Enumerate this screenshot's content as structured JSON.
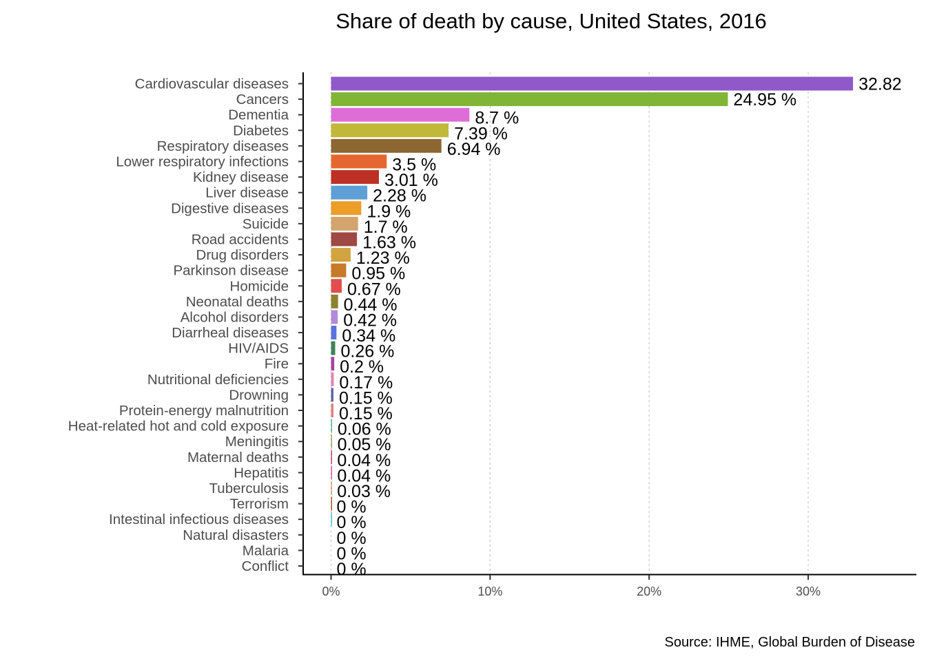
{
  "chart_data": {
    "type": "bar",
    "orientation": "horizontal",
    "title": "Share of death by cause, United States, 2016",
    "xlabel": "",
    "ylabel": "",
    "caption": "Source: IHME, Global Burden of Disease",
    "xlim": [
      0,
      36.5
    ],
    "x_ticks": [
      0,
      10,
      20,
      30
    ],
    "x_tick_labels": [
      "0%",
      "10%",
      "20%",
      "30%"
    ],
    "grid": "vertical dotted major gridlines",
    "legend": "none",
    "categories": [
      "Cardiovascular diseases",
      "Cancers",
      "Dementia",
      "Diabetes",
      "Respiratory diseases",
      "Lower respiratory infections",
      "Kidney disease",
      "Liver disease",
      "Digestive diseases",
      "Suicide",
      "Road accidents",
      "Drug disorders",
      "Parkinson disease",
      "Homicide",
      "Neonatal deaths",
      "Alcohol disorders",
      "Diarrheal diseases",
      "HIV/AIDS",
      "Fire",
      "Nutritional deficiencies",
      "Drowning",
      "Protein-energy malnutrition",
      "Heat-related hot and cold exposure",
      "Meningitis",
      "Maternal deaths",
      "Hepatitis",
      "Tuberculosis",
      "Terrorism",
      "Intestinal infectious diseases",
      "Natural disasters",
      "Malaria",
      "Conflict"
    ],
    "values": [
      32.82,
      24.95,
      8.7,
      7.39,
      6.94,
      3.5,
      3.01,
      2.28,
      1.9,
      1.7,
      1.63,
      1.23,
      0.95,
      0.67,
      0.44,
      0.42,
      0.34,
      0.26,
      0.2,
      0.17,
      0.15,
      0.15,
      0.06,
      0.05,
      0.04,
      0.04,
      0.03,
      0,
      0,
      0,
      0,
      0
    ],
    "data_labels": [
      "32.82",
      "24.95 %",
      "8.7 %",
      "7.39 %",
      "6.94 %",
      "3.5 %",
      "3.01 %",
      "2.28 %",
      "1.9 %",
      "1.7 %",
      "1.63 %",
      "1.23 %",
      "0.95 %",
      "0.67 %",
      "0.44 %",
      "0.42 %",
      "0.34 %",
      "0.26 %",
      "0.2 %",
      "0.17 %",
      "0.15 %",
      "0.15 %",
      "0.06 %",
      "0.05 %",
      "0.04 %",
      "0.04 %",
      "0.03 %",
      "0 %",
      "0 %",
      "0 %",
      "0 %",
      "0 %"
    ],
    "colors": [
      "#9158c9",
      "#80b536",
      "#dd6ed8",
      "#bfb839",
      "#8d6731",
      "#e5672f",
      "#bd3124",
      "#5e9fd6",
      "#ec9d2a",
      "#d3a46c",
      "#9e4944",
      "#d1a43f",
      "#c77a2a",
      "#e34d4d",
      "#8b8330",
      "#b28ad9",
      "#5b71dd",
      "#3c8554",
      "#a6449c",
      "#e083b8",
      "#5f62a2",
      "#e07f80",
      "#4fbf8a",
      "#99ab6b",
      "#c34567",
      "#d65c9f",
      "#e09b7b",
      "#a9572a",
      "#55c2c8",
      "#cccccc",
      "#cccccc",
      "#cccccc"
    ]
  }
}
